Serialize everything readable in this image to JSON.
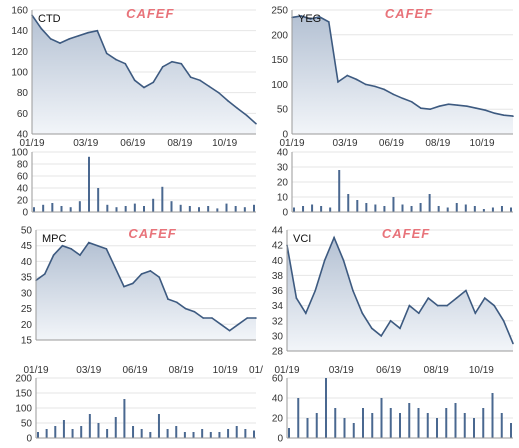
{
  "watermark": "CAFEF",
  "colors": {
    "line": "#3d5a80",
    "area_top": "#b4c1d3",
    "area_bottom": "#f2f5f9",
    "volume": "#4a6890",
    "grid": "#e6e6e6",
    "frame": "#9a9a9a",
    "watermark": "#e8737a"
  },
  "chart_data": [
    {
      "type": "line",
      "ticker": "CTD",
      "x_labels": [
        "01/19",
        "03/19",
        "06/19",
        "08/19",
        "10/19"
      ],
      "ylim": [
        40,
        160
      ],
      "yticks": [
        40,
        60,
        80,
        100,
        120,
        140,
        160
      ],
      "x": [
        0,
        2,
        4,
        6,
        8,
        10,
        12,
        14,
        16,
        18,
        20,
        22,
        24,
        26,
        28,
        30,
        32,
        34,
        36,
        38,
        40,
        42,
        44,
        46,
        48
      ],
      "y": [
        155,
        142,
        132,
        128,
        132,
        135,
        138,
        140,
        118,
        112,
        108,
        92,
        85,
        90,
        105,
        110,
        108,
        95,
        92,
        86,
        80,
        72,
        65,
        58,
        50
      ],
      "volume": {
        "ylim": [
          0,
          100
        ],
        "yticks": [
          0,
          20,
          40,
          60,
          80,
          100
        ],
        "x": [
          0,
          2,
          4,
          6,
          8,
          10,
          12,
          14,
          16,
          18,
          20,
          22,
          24,
          26,
          28,
          30,
          32,
          34,
          36,
          38,
          40,
          42,
          44,
          46,
          48
        ],
        "y": [
          8,
          12,
          15,
          10,
          8,
          18,
          92,
          40,
          12,
          8,
          10,
          14,
          10,
          22,
          42,
          18,
          12,
          10,
          8,
          10,
          6,
          14,
          10,
          8,
          12
        ]
      }
    },
    {
      "type": "line",
      "ticker": "YEG",
      "x_labels": [
        "01/19",
        "03/19",
        "06/19",
        "08/19",
        "10/19"
      ],
      "ylim": [
        0,
        250
      ],
      "yticks": [
        0,
        50,
        100,
        150,
        200,
        250
      ],
      "x": [
        0,
        2,
        4,
        6,
        8,
        10,
        12,
        14,
        16,
        18,
        20,
        22,
        24,
        26,
        28,
        30,
        32,
        34,
        36,
        38,
        40,
        42,
        44,
        46,
        48
      ],
      "y": [
        235,
        238,
        232,
        236,
        226,
        105,
        118,
        110,
        100,
        96,
        90,
        80,
        72,
        65,
        52,
        50,
        56,
        60,
        58,
        56,
        52,
        48,
        42,
        38,
        36
      ],
      "volume": {
        "ylim": [
          0,
          40
        ],
        "yticks": [
          0,
          10,
          20,
          30,
          40
        ],
        "x": [
          0,
          2,
          4,
          6,
          8,
          10,
          12,
          14,
          16,
          18,
          20,
          22,
          24,
          26,
          28,
          30,
          32,
          34,
          36,
          38,
          40,
          42,
          44,
          46,
          48
        ],
        "y": [
          3,
          4,
          5,
          4,
          3,
          28,
          12,
          8,
          6,
          5,
          4,
          10,
          5,
          4,
          6,
          12,
          4,
          3,
          6,
          5,
          4,
          2,
          3,
          4,
          3
        ]
      }
    },
    {
      "type": "line",
      "ticker": "MPC",
      "x_labels": [
        "01/19",
        "03/19",
        "06/19",
        "08/19",
        "10/19",
        "01/"
      ],
      "ylim": [
        15,
        50
      ],
      "yticks": [
        15,
        20,
        25,
        30,
        35,
        40,
        45,
        50
      ],
      "x": [
        0,
        2,
        4,
        6,
        8,
        10,
        12,
        14,
        16,
        18,
        20,
        22,
        24,
        26,
        28,
        30,
        32,
        34,
        36,
        38,
        40,
        42,
        44,
        46,
        48,
        50
      ],
      "y": [
        34,
        36,
        42,
        45,
        44,
        42,
        46,
        45,
        44,
        38,
        32,
        33,
        36,
        37,
        35,
        28,
        27,
        25,
        24,
        22,
        22,
        20,
        18,
        20,
        22,
        22
      ],
      "volume": {
        "ylim": [
          0,
          200
        ],
        "yticks": [
          0,
          50,
          100,
          150,
          200
        ],
        "x": [
          0,
          2,
          4,
          6,
          8,
          10,
          12,
          14,
          16,
          18,
          20,
          22,
          24,
          26,
          28,
          30,
          32,
          34,
          36,
          38,
          40,
          42,
          44,
          46,
          48,
          50
        ],
        "y": [
          20,
          30,
          40,
          60,
          30,
          40,
          80,
          50,
          30,
          70,
          130,
          40,
          30,
          20,
          80,
          30,
          40,
          20,
          20,
          30,
          20,
          20,
          30,
          40,
          30,
          25
        ]
      }
    },
    {
      "type": "line",
      "ticker": "VCI",
      "x_labels": [
        "01/19",
        "03/19",
        "06/19",
        "08/19",
        "10/19"
      ],
      "ylim": [
        28,
        44
      ],
      "yticks": [
        28,
        30,
        32,
        34,
        36,
        38,
        40,
        42,
        44
      ],
      "x": [
        0,
        2,
        4,
        6,
        8,
        10,
        12,
        14,
        16,
        18,
        20,
        22,
        24,
        26,
        28,
        30,
        32,
        34,
        36,
        38,
        40,
        42,
        44,
        46,
        48
      ],
      "y": [
        42,
        35,
        33,
        36,
        40,
        43,
        40,
        36,
        33,
        31,
        30,
        32,
        31,
        34,
        33,
        35,
        34,
        34,
        35,
        36,
        33,
        35,
        34,
        32,
        29
      ],
      "volume": {
        "ylim": [
          0,
          60
        ],
        "yticks": [
          0,
          20,
          40,
          60
        ],
        "x": [
          0,
          2,
          4,
          6,
          8,
          10,
          12,
          14,
          16,
          18,
          20,
          22,
          24,
          26,
          28,
          30,
          32,
          34,
          36,
          38,
          40,
          42,
          44,
          46,
          48
        ],
        "y": [
          10,
          40,
          20,
          25,
          60,
          30,
          20,
          15,
          30,
          25,
          40,
          30,
          25,
          35,
          30,
          25,
          20,
          30,
          35,
          25,
          20,
          30,
          45,
          25,
          15
        ]
      }
    }
  ]
}
